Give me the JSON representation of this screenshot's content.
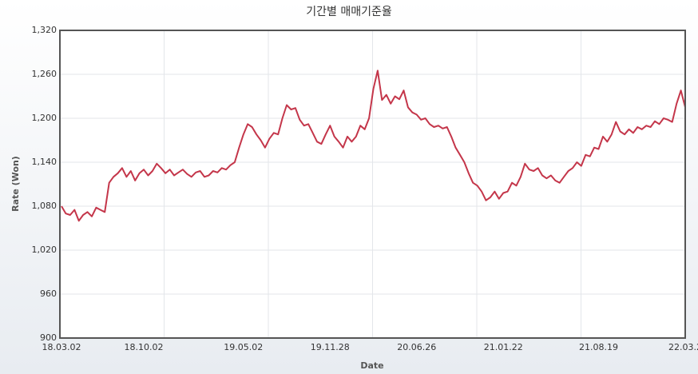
{
  "chart_data": {
    "type": "line",
    "title": "기간별 매매기준율",
    "x_label": "Date",
    "y_label": "Rate (Won)",
    "categories": [
      "18.03.02",
      null,
      null,
      null,
      null,
      null,
      null,
      null,
      null,
      null,
      null,
      null,
      null,
      null,
      null,
      null,
      null,
      null,
      null,
      "18.10.02",
      null,
      null,
      null,
      null,
      null,
      null,
      null,
      null,
      null,
      null,
      null,
      null,
      null,
      null,
      null,
      null,
      null,
      null,
      null,
      null,
      null,
      null,
      "19.05.02",
      null,
      null,
      null,
      null,
      null,
      null,
      null,
      null,
      null,
      null,
      null,
      null,
      null,
      null,
      null,
      null,
      null,
      null,
      null,
      "19.11.28",
      null,
      null,
      null,
      null,
      null,
      null,
      null,
      null,
      null,
      null,
      null,
      null,
      null,
      null,
      null,
      null,
      null,
      null,
      null,
      "20.06.26",
      null,
      null,
      null,
      null,
      null,
      null,
      null,
      null,
      null,
      null,
      null,
      null,
      null,
      null,
      null,
      null,
      null,
      null,
      null,
      "21.01.22",
      null,
      null,
      null,
      null,
      null,
      null,
      null,
      null,
      null,
      null,
      null,
      null,
      null,
      null,
      null,
      null,
      null,
      null,
      null,
      null,
      null,
      "21.08.19",
      null,
      null,
      null,
      null,
      null,
      null,
      null,
      null,
      null,
      null,
      null,
      null,
      null,
      null,
      null,
      null,
      null,
      null,
      null,
      "22.03.2"
    ],
    "series": [
      {
        "name": "Rate",
        "color": "#c4364a",
        "values": [
          1080,
          1070,
          1068,
          1075,
          1060,
          1068,
          1072,
          1066,
          1078,
          1075,
          1072,
          1112,
          1120,
          1125,
          1132,
          1120,
          1128,
          1115,
          1125,
          1130,
          1122,
          1128,
          1138,
          1132,
          1125,
          1130,
          1122,
          1126,
          1130,
          1124,
          1120,
          1126,
          1128,
          1120,
          1122,
          1128,
          1126,
          1132,
          1130,
          1136,
          1140,
          1160,
          1178,
          1192,
          1188,
          1178,
          1170,
          1160,
          1172,
          1180,
          1178,
          1200,
          1218,
          1212,
          1214,
          1198,
          1190,
          1192,
          1180,
          1168,
          1165,
          1178,
          1190,
          1175,
          1168,
          1160,
          1175,
          1168,
          1175,
          1190,
          1185,
          1200,
          1240,
          1265,
          1225,
          1232,
          1220,
          1230,
          1226,
          1238,
          1215,
          1208,
          1205,
          1198,
          1200,
          1192,
          1188,
          1190,
          1186,
          1188,
          1175,
          1160,
          1150,
          1140,
          1125,
          1112,
          1108,
          1100,
          1088,
          1092,
          1100,
          1090,
          1098,
          1100,
          1112,
          1108,
          1120,
          1138,
          1130,
          1128,
          1132,
          1122,
          1118,
          1122,
          1115,
          1112,
          1120,
          1128,
          1132,
          1140,
          1135,
          1150,
          1148,
          1160,
          1158,
          1175,
          1168,
          1178,
          1195,
          1182,
          1178,
          1185,
          1180,
          1188,
          1185,
          1190,
          1188,
          1196,
          1192,
          1200,
          1198,
          1195,
          1220,
          1238,
          1215
        ]
      }
    ],
    "ylim": [
      900,
      1320
    ],
    "yticks": [
      900,
      {
        "value": 960,
        "label": "960"
      },
      {
        "value": 1020,
        "label": "1,020"
      },
      {
        "value": 1080,
        "label": "1,080"
      },
      {
        "value": 1140,
        "label": "1,140"
      },
      {
        "value": 1200,
        "label": "1,200"
      },
      {
        "value": 1260,
        "label": "1,260"
      },
      {
        "value": 1320,
        "label": "1,320"
      }
    ],
    "grid": true
  }
}
